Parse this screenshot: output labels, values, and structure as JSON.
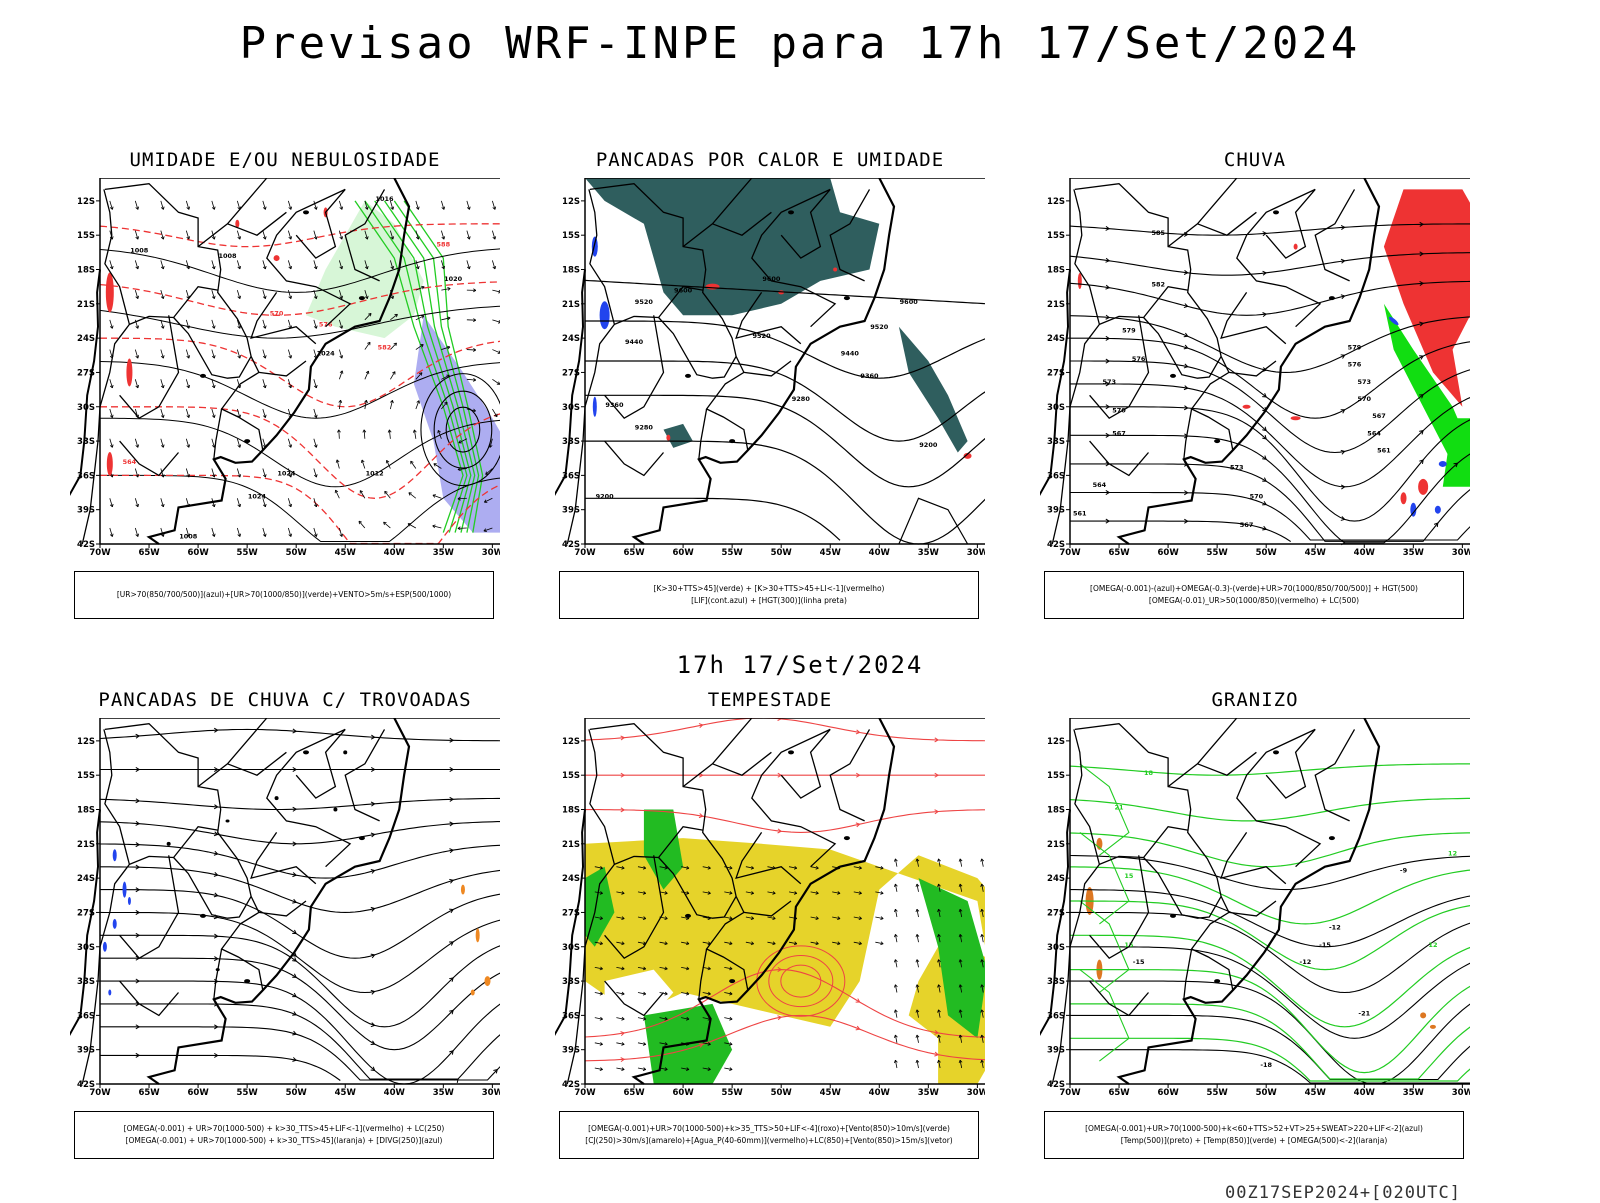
{
  "header": {
    "title": "Previsao WRF-INPE  para 17h 17/Set/2024",
    "subtitle": "17h 17/Set/2024",
    "footer": "00Z17SEP2024+[020UTC]"
  },
  "axes": {
    "lon_ticks": [
      "70W",
      "65W",
      "60W",
      "55W",
      "50W",
      "45W",
      "40W",
      "35W",
      "30W"
    ],
    "lat_ticks": [
      "12S",
      "15S",
      "18S",
      "21S",
      "24S",
      "27S",
      "30S",
      "33S",
      "36S",
      "39S",
      "42S"
    ],
    "lon_range": [
      -70,
      -28
    ],
    "lat_range": [
      -42,
      -10
    ]
  },
  "chart_data": [
    {
      "type": "heatmap",
      "title": "UMIDADE E/OU NEBULOSIDADE",
      "legend": [
        "[UR>70(850/700/500)](azul)+[UR>70(1000/850)](verde)+VENTO>5m/s+ESP(500/1000)"
      ],
      "contour_labels": [
        "1008",
        "1012",
        "1016",
        "1020",
        "1024",
        "564",
        "570",
        "576",
        "582",
        "588"
      ],
      "colors": {
        "azul": "#6a6ae6",
        "verde": "#22cc22",
        "vermelho": "#ee3333"
      }
    },
    {
      "type": "heatmap",
      "title": "PANCADAS POR CALOR E UMIDADE",
      "legend": [
        "[K>30+TTS>45](verde) + [K>30+TTS>45+LI<-1](vermelho)",
        "[LIF](cont.azul) + [HGT(300)](linha preta)"
      ],
      "contour_labels": [
        "9200",
        "9280",
        "9360",
        "9440",
        "9520",
        "9600"
      ],
      "colors": {
        "verde": "#2f5e5e",
        "vermelho": "#ee3333",
        "azul": "#2244ee"
      }
    },
    {
      "type": "heatmap",
      "title": "CHUVA",
      "legend": [
        "[OMEGA(-0.001)-(azul)+OMEGA(-0.3)-(verde)+UR>70(1000/850/700/500)] + HGT(500)",
        "[OMEGA(-0.01)_UR>50(1000/850)(vermelho) + LC(500)"
      ],
      "contour_labels": [
        "561",
        "564",
        "567",
        "570",
        "573",
        "576",
        "579",
        "582",
        "585"
      ],
      "colors": {
        "azul": "#2244ee",
        "verde": "#11dd11",
        "vermelho": "#ee3333"
      }
    },
    {
      "type": "heatmap",
      "title": "PANCADAS DE CHUVA C/ TROVOADAS",
      "legend": [
        "[OMEGA(-0.001) + UR>70(1000-500) + k>30_TTS>45+LIF<-1](vermelho) + LC(250)",
        "[OMEGA(-0.001) + UR>70(1000-500) + k>30_TTS>45](laranja) + [DIVG(250)](azul)"
      ],
      "contour_labels": [],
      "colors": {
        "laranja": "#ee8822",
        "azul": "#2244ee"
      }
    },
    {
      "type": "heatmap",
      "title": "TEMPESTADE",
      "legend": [
        "[OMEGA(-0.001)+UR>70(1000-500)+k>35_TTS>50+LIF<-4](roxo)+[Vento(850)>10m/s](verde)",
        "[CJ(250)>30m/s](amarelo)+[Agua_P(40-60mm)](vermelho)+LC(850)+[Vento(850)>15m/s](vetor)"
      ],
      "contour_labels": [],
      "colors": {
        "amarelo": "#e6d32a",
        "verde": "#22bb22",
        "vermelho": "#ee4444"
      }
    },
    {
      "type": "heatmap",
      "title": "GRANIZO",
      "legend": [
        "[OMEGA(-0.001)+UR>70(1000-500)+k<60+TTS>52+VT>25+SWEAT>220+LIF<-2](azul)",
        "[Temp(500)](preto) + [Temp(850)](verde) + [OMEGA(500)<-2](laranja)"
      ],
      "contour_labels": [
        "-21",
        "-18",
        "-15",
        "-12",
        "-9",
        "12",
        "15",
        "18",
        "21"
      ],
      "colors": {
        "verde": "#22cc22",
        "laranja": "#dd7722",
        "preto": "#000000"
      }
    }
  ]
}
